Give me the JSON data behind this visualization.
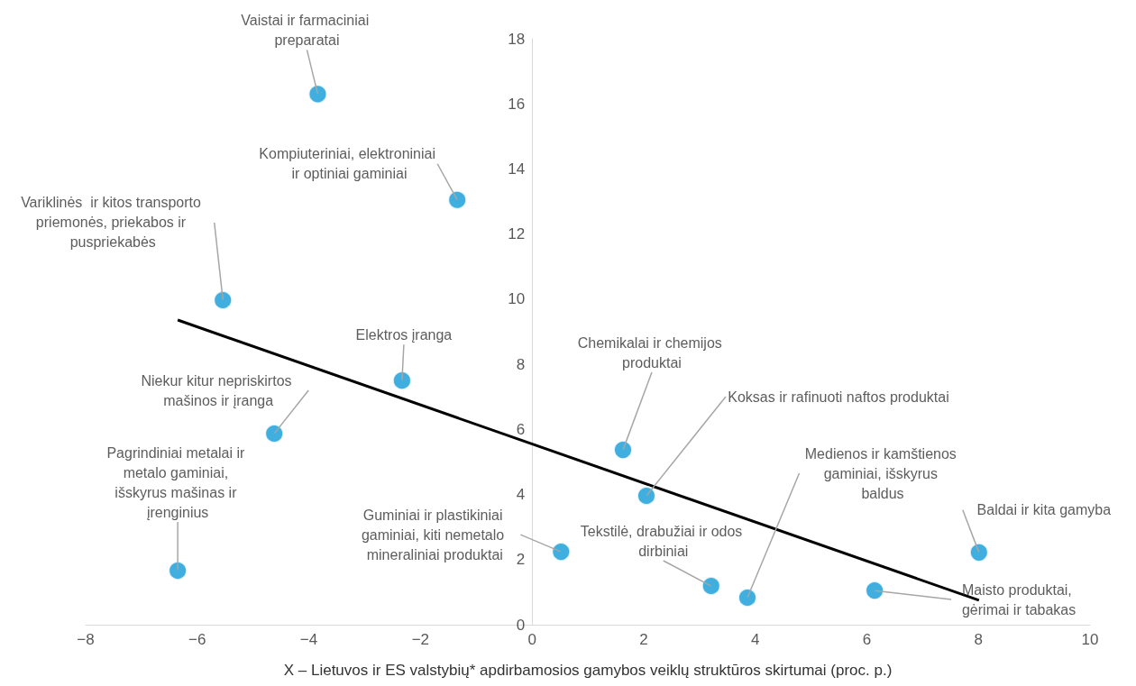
{
  "chart_data": {
    "type": "scatter",
    "xlabel": "X – Lietuvos ir ES valstybių* apdirbamosios gamybos veiklų struktūros skirtumai (proc. p.)",
    "xlim": [
      -8,
      10
    ],
    "xticks": [
      -8,
      -6,
      -4,
      -2,
      0,
      2,
      4,
      6,
      8,
      10
    ],
    "ylim": [
      0,
      18
    ],
    "yticks": [
      0,
      2,
      4,
      6,
      8,
      10,
      12,
      14,
      16,
      18
    ],
    "series": [
      {
        "color": "#109bd7",
        "marker": "circle",
        "x": [
          -3.84,
          -1.34,
          -5.54,
          -2.33,
          -4.62,
          -6.35,
          0.52,
          1.63,
          2.05,
          3.21,
          3.86,
          6.14,
          8.01
        ],
        "values": [
          16.3,
          13.05,
          9.97,
          7.5,
          5.87,
          1.66,
          2.24,
          5.37,
          3.96,
          1.19,
          0.83,
          1.05,
          2.22
        ]
      },
      {
        "type": "line",
        "color": "#000000",
        "marker": "none",
        "x": [
          -6.35,
          8.01
        ],
        "values": [
          9.36,
          0.75
        ]
      }
    ],
    "annotations": [
      {
        "text": "Vaistai ir farmaciniai preparatai",
        "x": -3.84,
        "y": 16.3
      },
      {
        "text": "Kompiuteriniai, elektroniniai ir optiniai gaminiai",
        "x": -1.34,
        "y": 13.05
      },
      {
        "text": "Variklinės  ir kitos transporto priemonės, priekabos ir puspriekabės",
        "x": -5.54,
        "y": 9.97
      },
      {
        "text": "Elektros įranga",
        "x": -2.33,
        "y": 7.5
      },
      {
        "text": "Niekur kitur nepriskirtos mašinos ir įranga",
        "x": -4.62,
        "y": 5.87
      },
      {
        "text": "Pagrindiniai metalai ir metalo gaminiai, išskyrus mašinas ir įrenginius",
        "x": -6.35,
        "y": 1.66
      },
      {
        "text": "Guminiai ir plastikiniai gaminiai, kiti nemetalo mineraliniai produktai",
        "x": 0.52,
        "y": 2.24
      },
      {
        "text": "Chemikalai ir chemijos produktai",
        "x": 1.63,
        "y": 5.37
      },
      {
        "text": "Koksas ir rafinuoti naftos produktai",
        "x": 2.05,
        "y": 3.96
      },
      {
        "text": "Tekstilė, drabužiai ir odos dirbiniai",
        "x": 3.21,
        "y": 1.19
      },
      {
        "text": "Medienos ir kamštienos gaminiai, išskyrus baldus",
        "x": 3.86,
        "y": 0.83
      },
      {
        "text": "Maisto produktai, gėrimai ir tabakas",
        "x": 6.14,
        "y": 1.05
      },
      {
        "text": "Baldai ir kita gamyba",
        "x": 8.01,
        "y": 2.22
      }
    ]
  }
}
